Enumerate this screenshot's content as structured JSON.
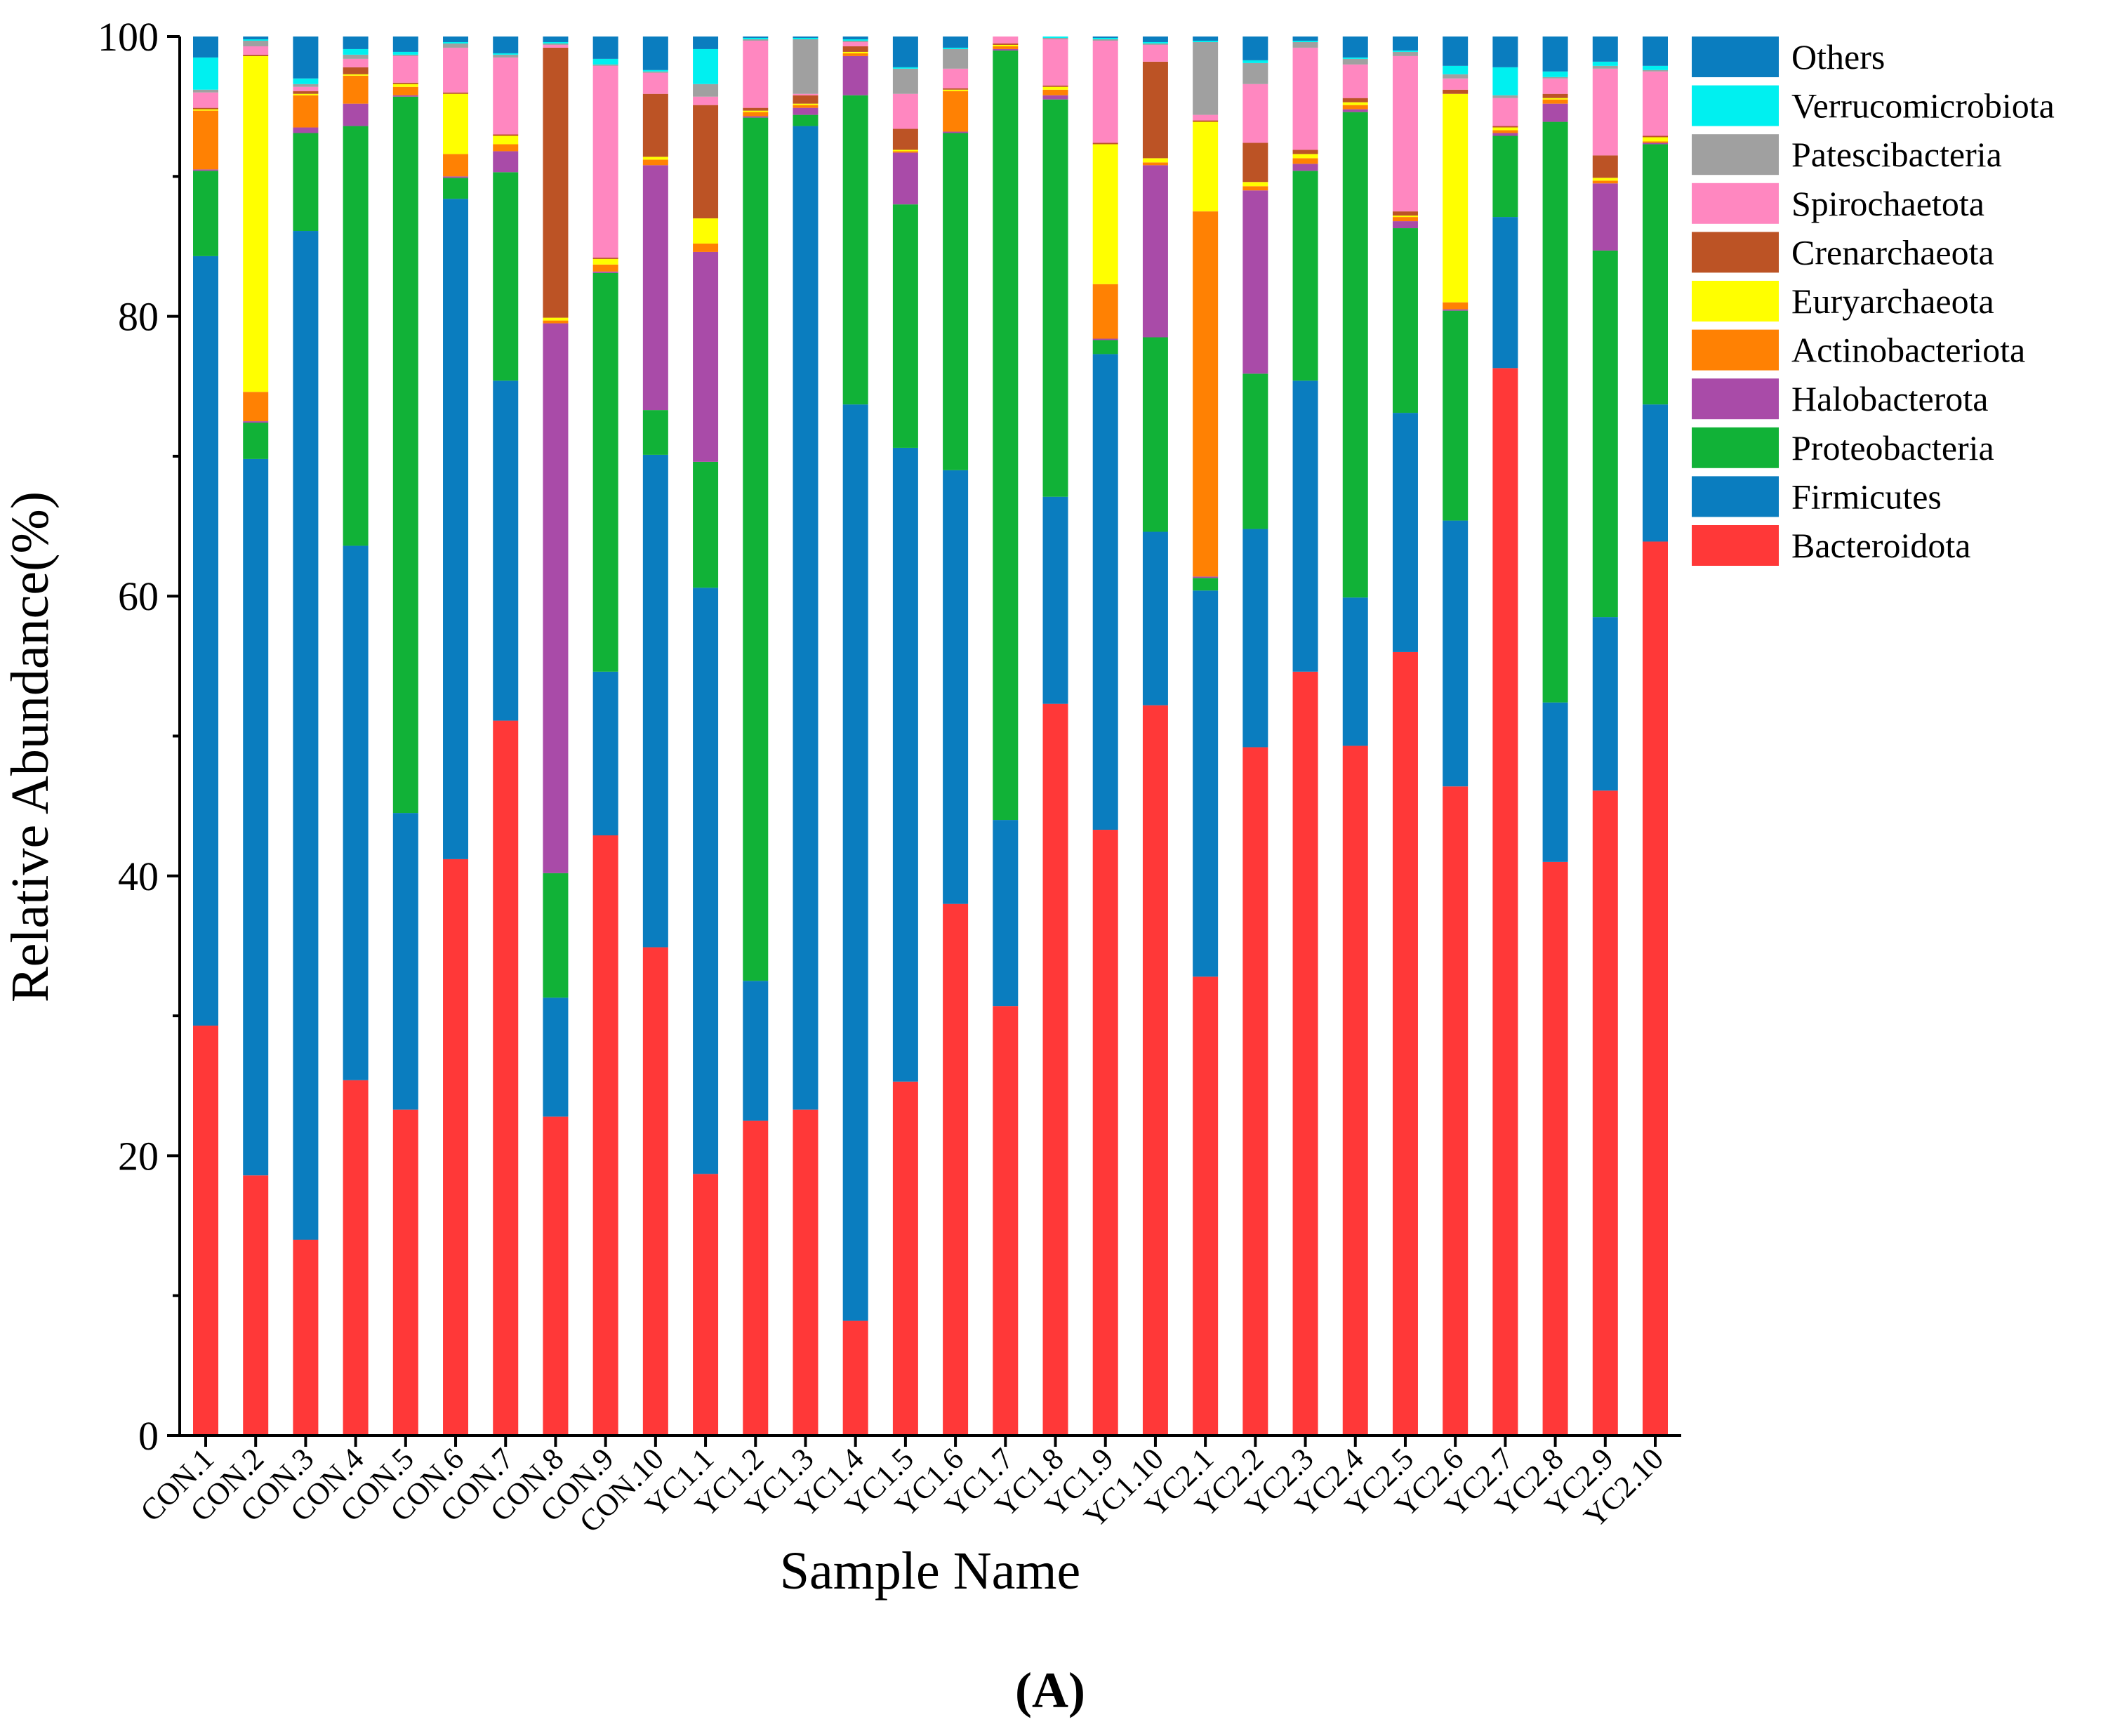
{
  "chart_data": {
    "type": "bar",
    "stacked": true,
    "title": "",
    "xlabel": "Sample Name",
    "ylabel": "Relative Abundance(%)",
    "ylim": [
      0,
      100
    ],
    "yticks": [
      0,
      20,
      40,
      60,
      80,
      100
    ],
    "panel_label": "(A)",
    "legend_position": "right",
    "categories": [
      "CON.1",
      "CON.2",
      "CON.3",
      "CON.4",
      "CON.5",
      "CON.6",
      "CON.7",
      "CON.8",
      "CON.9",
      "CON.10",
      "YC1.1",
      "YC1.2",
      "YC1.3",
      "YC1.4",
      "YC1.5",
      "YC1.6",
      "YC1.7",
      "YC1.8",
      "YC1.9",
      "YC1.10",
      "YC2.1",
      "YC2.2",
      "YC2.3",
      "YC2.4",
      "YC2.5",
      "YC2.6",
      "YC2.7",
      "YC2.8",
      "YC2.9",
      "YC2.10"
    ],
    "series": [
      {
        "name": "Bacteroidota",
        "color": "#ff3838",
        "values": [
          29.3,
          18.6,
          14.0,
          25.4,
          23.3,
          41.2,
          51.1,
          22.8,
          42.9,
          34.9,
          18.7,
          22.5,
          23.3,
          8.2,
          25.3,
          38.0,
          30.7,
          52.3,
          43.3,
          52.2,
          32.8,
          49.2,
          54.6,
          49.3,
          56.0,
          46.4,
          76.3,
          41.0,
          46.1,
          63.9
        ]
      },
      {
        "name": "Firmicutes",
        "color": "#0a7dbf",
        "values": [
          55.0,
          51.2,
          72.1,
          38.2,
          21.2,
          47.2,
          24.3,
          8.5,
          11.7,
          35.2,
          41.9,
          10.0,
          70.3,
          65.5,
          45.3,
          31.0,
          13.3,
          14.8,
          34.0,
          12.4,
          27.6,
          15.6,
          20.8,
          10.6,
          17.1,
          19.0,
          10.8,
          11.4,
          12.4,
          9.8
        ]
      },
      {
        "name": "Proteobacteria",
        "color": "#11b237",
        "values": [
          6.1,
          2.6,
          7.0,
          30.0,
          51.2,
          1.5,
          14.9,
          8.9,
          28.5,
          3.2,
          9.0,
          61.7,
          0.8,
          22.1,
          17.4,
          24.1,
          55.0,
          28.4,
          1.0,
          13.9,
          0.9,
          11.1,
          15.0,
          34.7,
          13.2,
          15.0,
          5.8,
          41.5,
          26.2,
          18.6
        ]
      },
      {
        "name": "Halobacterota",
        "color": "#a94ba8",
        "values": [
          0.1,
          0.1,
          0.4,
          1.6,
          0.1,
          0.1,
          1.5,
          39.3,
          0.1,
          17.5,
          15.0,
          0.1,
          0.5,
          2.8,
          3.7,
          0.1,
          0.1,
          0.3,
          0.1,
          12.3,
          0.1,
          13.1,
          0.5,
          0.2,
          0.5,
          0.1,
          0.2,
          1.3,
          4.8,
          0.1
        ]
      },
      {
        "name": "Actinobacteriota",
        "color": "#ff8103",
        "values": [
          4.2,
          2.1,
          2.3,
          2.0,
          0.6,
          1.6,
          0.5,
          0.2,
          0.5,
          0.4,
          0.6,
          0.3,
          0.2,
          0.2,
          0.1,
          2.9,
          0.2,
          0.4,
          3.9,
          0.2,
          26.1,
          0.3,
          0.4,
          0.3,
          0.3,
          0.5,
          0.2,
          0.3,
          0.2,
          0.1
        ]
      },
      {
        "name": "Euryarchaeota",
        "color": "#ffff00",
        "values": [
          0.1,
          24.0,
          0.1,
          0.1,
          0.2,
          4.3,
          0.6,
          0.2,
          0.4,
          0.2,
          1.8,
          0.1,
          0.1,
          0.1,
          0.1,
          0.1,
          0.1,
          0.2,
          10.0,
          0.3,
          6.4,
          0.3,
          0.3,
          0.2,
          0.1,
          14.9,
          0.2,
          0.1,
          0.2,
          0.3
        ]
      },
      {
        "name": "Crenarchaeota",
        "color": "#bc5325",
        "values": [
          0.1,
          0.1,
          0.2,
          0.5,
          0.1,
          0.1,
          0.1,
          19.3,
          0.1,
          4.5,
          8.1,
          0.2,
          0.6,
          0.4,
          1.5,
          0.1,
          0.1,
          0.1,
          0.1,
          6.9,
          0.1,
          2.8,
          0.3,
          0.3,
          0.3,
          0.3,
          0.1,
          0.3,
          1.6,
          0.1
        ]
      },
      {
        "name": "Spirochaetota",
        "color": "#ff87c0",
        "values": [
          1.1,
          0.6,
          0.3,
          0.6,
          1.9,
          3.2,
          5.5,
          0.2,
          13.7,
          1.5,
          0.6,
          4.8,
          0.1,
          0.3,
          2.5,
          1.4,
          0.5,
          3.3,
          7.3,
          1.2,
          0.4,
          4.2,
          7.3,
          2.4,
          11.1,
          0.8,
          2.0,
          1.1,
          6.2,
          4.6
        ]
      },
      {
        "name": "Patescibacteria",
        "color": "#a0a0a0",
        "values": [
          0.2,
          0.4,
          0.2,
          0.3,
          0.1,
          0.3,
          0.2,
          0.1,
          0.1,
          0.1,
          0.9,
          0.1,
          3.9,
          0.1,
          1.8,
          1.4,
          0.1,
          0.1,
          0.1,
          0.1,
          5.2,
          1.5,
          0.4,
          0.4,
          0.3,
          0.3,
          0.2,
          0.1,
          0.2,
          0.1
        ]
      },
      {
        "name": "Verrucomicrobiota",
        "color": "#00f0f0",
        "values": [
          2.3,
          0.1,
          0.4,
          0.4,
          0.2,
          0.1,
          0.1,
          0.1,
          0.4,
          0.1,
          2.5,
          0.1,
          0.1,
          0.1,
          0.1,
          0.1,
          0.1,
          0.1,
          0.1,
          0.1,
          0.1,
          0.2,
          0.1,
          0.1,
          0.1,
          0.6,
          2.0,
          0.4,
          0.3,
          0.3
        ]
      },
      {
        "name": "Others",
        "color": "#0a7dbf",
        "values": [
          1.6,
          0.2,
          3.0,
          0.9,
          1.1,
          0.4,
          1.2,
          0.8,
          1.6,
          2.4,
          0.9,
          0.1,
          0.1,
          0.2,
          2.2,
          0.9,
          0.2,
          0.1,
          0.1,
          0.5,
          0.3,
          1.7,
          0.3,
          1.5,
          1.0,
          2.1,
          2.2,
          2.5,
          1.8,
          2.1
        ]
      }
    ]
  }
}
